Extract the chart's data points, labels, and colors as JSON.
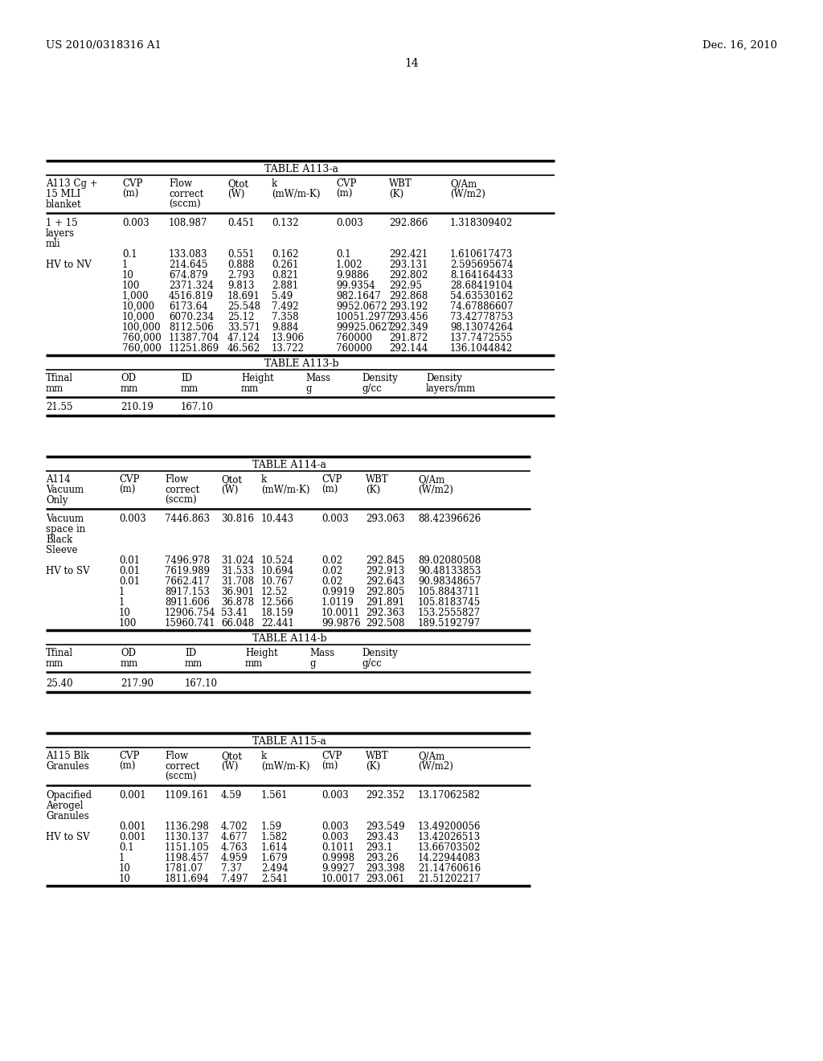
{
  "header_left": "US 2010/0318316 A1",
  "header_right": "Dec. 16, 2010",
  "page_number": "14",
  "background_color": "#ffffff",
  "text_color": "#000000",
  "table_a113a_title": "TABLE A113-a",
  "table_a113a_cols": [
    [
      "A113 Cg +",
      "15 MLI",
      "blanket"
    ],
    [
      "CVP",
      "(m)"
    ],
    [
      "Flow",
      "correct",
      "(sccm)"
    ],
    [
      "Qtot",
      "(W)"
    ],
    [
      "k",
      "(mW/m-K)"
    ],
    [
      "CVP",
      "(m)"
    ],
    [
      "WBT",
      "(K)"
    ],
    [
      "Q/Am",
      "(W/m2)"
    ]
  ],
  "table_a113a_rows": [
    [
      "1 + 15",
      "0.003",
      "108.987",
      "0.451",
      "0.132",
      "0.003",
      "292.866",
      "1.318309402"
    ],
    [
      "layers",
      "",
      "",
      "",
      "",
      "",
      "",
      ""
    ],
    [
      "mli",
      "",
      "",
      "",
      "",
      "",
      "",
      ""
    ],
    [
      "",
      "0.1",
      "133.083",
      "0.551",
      "0.162",
      "0.1",
      "292.421",
      "1.610617473"
    ],
    [
      "HV to NV",
      "1",
      "214.645",
      "0.888",
      "0.261",
      "1.002",
      "293.131",
      "2.595695674"
    ],
    [
      "",
      "10",
      "674.879",
      "2.793",
      "0.821",
      "9.9886",
      "292.802",
      "8.164164433"
    ],
    [
      "",
      "100",
      "2371.324",
      "9.813",
      "2.881",
      "99.9354",
      "292.95",
      "28.68419104"
    ],
    [
      "",
      "1,000",
      "4516.819",
      "18.691",
      "5.49",
      "982.1647",
      "292.868",
      "54.63530162"
    ],
    [
      "",
      "10,000",
      "6173.64",
      "25.548",
      "7.492",
      "9952.0672",
      "293.192",
      "74.67886607"
    ],
    [
      "",
      "10,000",
      "6070.234",
      "25.12",
      "7.358",
      "10051.2977",
      "293.456",
      "73.42778753"
    ],
    [
      "",
      "100,000",
      "8112.506",
      "33.571",
      "9.884",
      "99925.0627",
      "292.349",
      "98.13074264"
    ],
    [
      "",
      "760,000",
      "11387.704",
      "47.124",
      "13.906",
      "760000",
      "291.872",
      "137.7472555"
    ],
    [
      "",
      "760,000",
      "11251.869",
      "46.562",
      "13.722",
      "760000",
      "292.144",
      "136.1044842"
    ]
  ],
  "table_a113b_title": "TABLE A113-b",
  "table_a113b_cols": [
    [
      "Tfinal",
      "mm"
    ],
    [
      "OD",
      "mm"
    ],
    [
      "ID",
      "mm"
    ],
    [
      "Height",
      "mm"
    ],
    [
      "Mass",
      "g"
    ],
    [
      "Density",
      "g/cc"
    ],
    [
      "Density",
      "layers/mm"
    ]
  ],
  "table_a113b_rows": [
    [
      "21.55",
      "210.19",
      "167.10",
      "",
      "",
      "",
      ""
    ]
  ],
  "table_a114a_title": "TABLE A114-a",
  "table_a114a_cols": [
    [
      "A114",
      "Vacuum",
      "Only"
    ],
    [
      "CVP",
      "(m)"
    ],
    [
      "Flow",
      "correct",
      "(sccm)"
    ],
    [
      "Qtot",
      "(W)"
    ],
    [
      "k",
      "(mW/m-K)"
    ],
    [
      "CVP",
      "(m)"
    ],
    [
      "WBT",
      "(K)"
    ],
    [
      "Q/Am",
      "(W/m2)"
    ]
  ],
  "table_a114a_rows": [
    [
      "Vacuum",
      "0.003",
      "7446.863",
      "30.816",
      "10.443",
      "0.003",
      "293.063",
      "88.42396626"
    ],
    [
      "space in",
      "",
      "",
      "",
      "",
      "",
      "",
      ""
    ],
    [
      "Black",
      "",
      "",
      "",
      "",
      "",
      "",
      ""
    ],
    [
      "Sleeve",
      "",
      "",
      "",
      "",
      "",
      "",
      ""
    ],
    [
      "",
      "0.01",
      "7496.978",
      "31.024",
      "10.524",
      "0.02",
      "292.845",
      "89.02080508"
    ],
    [
      "HV to SV",
      "0.01",
      "7619.989",
      "31.533",
      "10.694",
      "0.02",
      "292.913",
      "90.48133853"
    ],
    [
      "",
      "0.01",
      "7662.417",
      "31.708",
      "10.767",
      "0.02",
      "292.643",
      "90.98348657"
    ],
    [
      "",
      "1",
      "8917.153",
      "36.901",
      "12.52",
      "0.9919",
      "292.805",
      "105.8843711"
    ],
    [
      "",
      "1",
      "8911.606",
      "36.878",
      "12.566",
      "1.0119",
      "291.891",
      "105.8183745"
    ],
    [
      "",
      "10",
      "12906.754",
      "53.41",
      "18.159",
      "10.0011",
      "292.363",
      "153.2555827"
    ],
    [
      "",
      "100",
      "15960.741",
      "66.048",
      "22.441",
      "99.9876",
      "292.508",
      "189.5192797"
    ]
  ],
  "table_a114b_title": "TABLE A114-b",
  "table_a114b_cols": [
    [
      "Tfinal",
      "mm"
    ],
    [
      "OD",
      "mm"
    ],
    [
      "ID",
      "mm"
    ],
    [
      "Height",
      "mm"
    ],
    [
      "Mass",
      "g"
    ],
    [
      "Density",
      "g/cc"
    ]
  ],
  "table_a114b_rows": [
    [
      "25.40",
      "217.90",
      "167.10",
      "",
      "",
      ""
    ]
  ],
  "table_a115a_title": "TABLE A115-a",
  "table_a115a_cols": [
    [
      "A115 Blk",
      "Granules"
    ],
    [
      "CVP",
      "(m)"
    ],
    [
      "Flow",
      "correct",
      "(sccm)"
    ],
    [
      "Qtot",
      "(W)"
    ],
    [
      "k",
      "(mW/m-K)"
    ],
    [
      "CVP",
      "(m)"
    ],
    [
      "WBT",
      "(K)"
    ],
    [
      "Q/Am",
      "(W/m2)"
    ]
  ],
  "table_a115a_rows": [
    [
      "Opacified",
      "0.001",
      "1109.161",
      "4.59",
      "1.561",
      "0.003",
      "292.352",
      "13.17062582"
    ],
    [
      "Aerogel",
      "",
      "",
      "",
      "",
      "",
      "",
      ""
    ],
    [
      "Granules",
      "",
      "",
      "",
      "",
      "",
      "",
      ""
    ],
    [
      "",
      "0.001",
      "1136.298",
      "4.702",
      "1.59",
      "0.003",
      "293.549",
      "13.49200056"
    ],
    [
      "HV to SV",
      "0.001",
      "1130.137",
      "4.677",
      "1.582",
      "0.003",
      "293.43",
      "13.42026513"
    ],
    [
      "",
      "0.1",
      "1151.105",
      "4.763",
      "1.614",
      "0.1011",
      "293.1",
      "13.66703502"
    ],
    [
      "",
      "1",
      "1198.457",
      "4.959",
      "1.679",
      "0.9998",
      "293.26",
      "14.22944083"
    ],
    [
      "",
      "10",
      "1781.07",
      "7.37",
      "2.494",
      "9.9927",
      "293.398",
      "21.14760616"
    ],
    [
      "",
      "10",
      "1811.694",
      "7.497",
      "2.541",
      "10.0017",
      "293.061",
      "21.51202217"
    ]
  ]
}
